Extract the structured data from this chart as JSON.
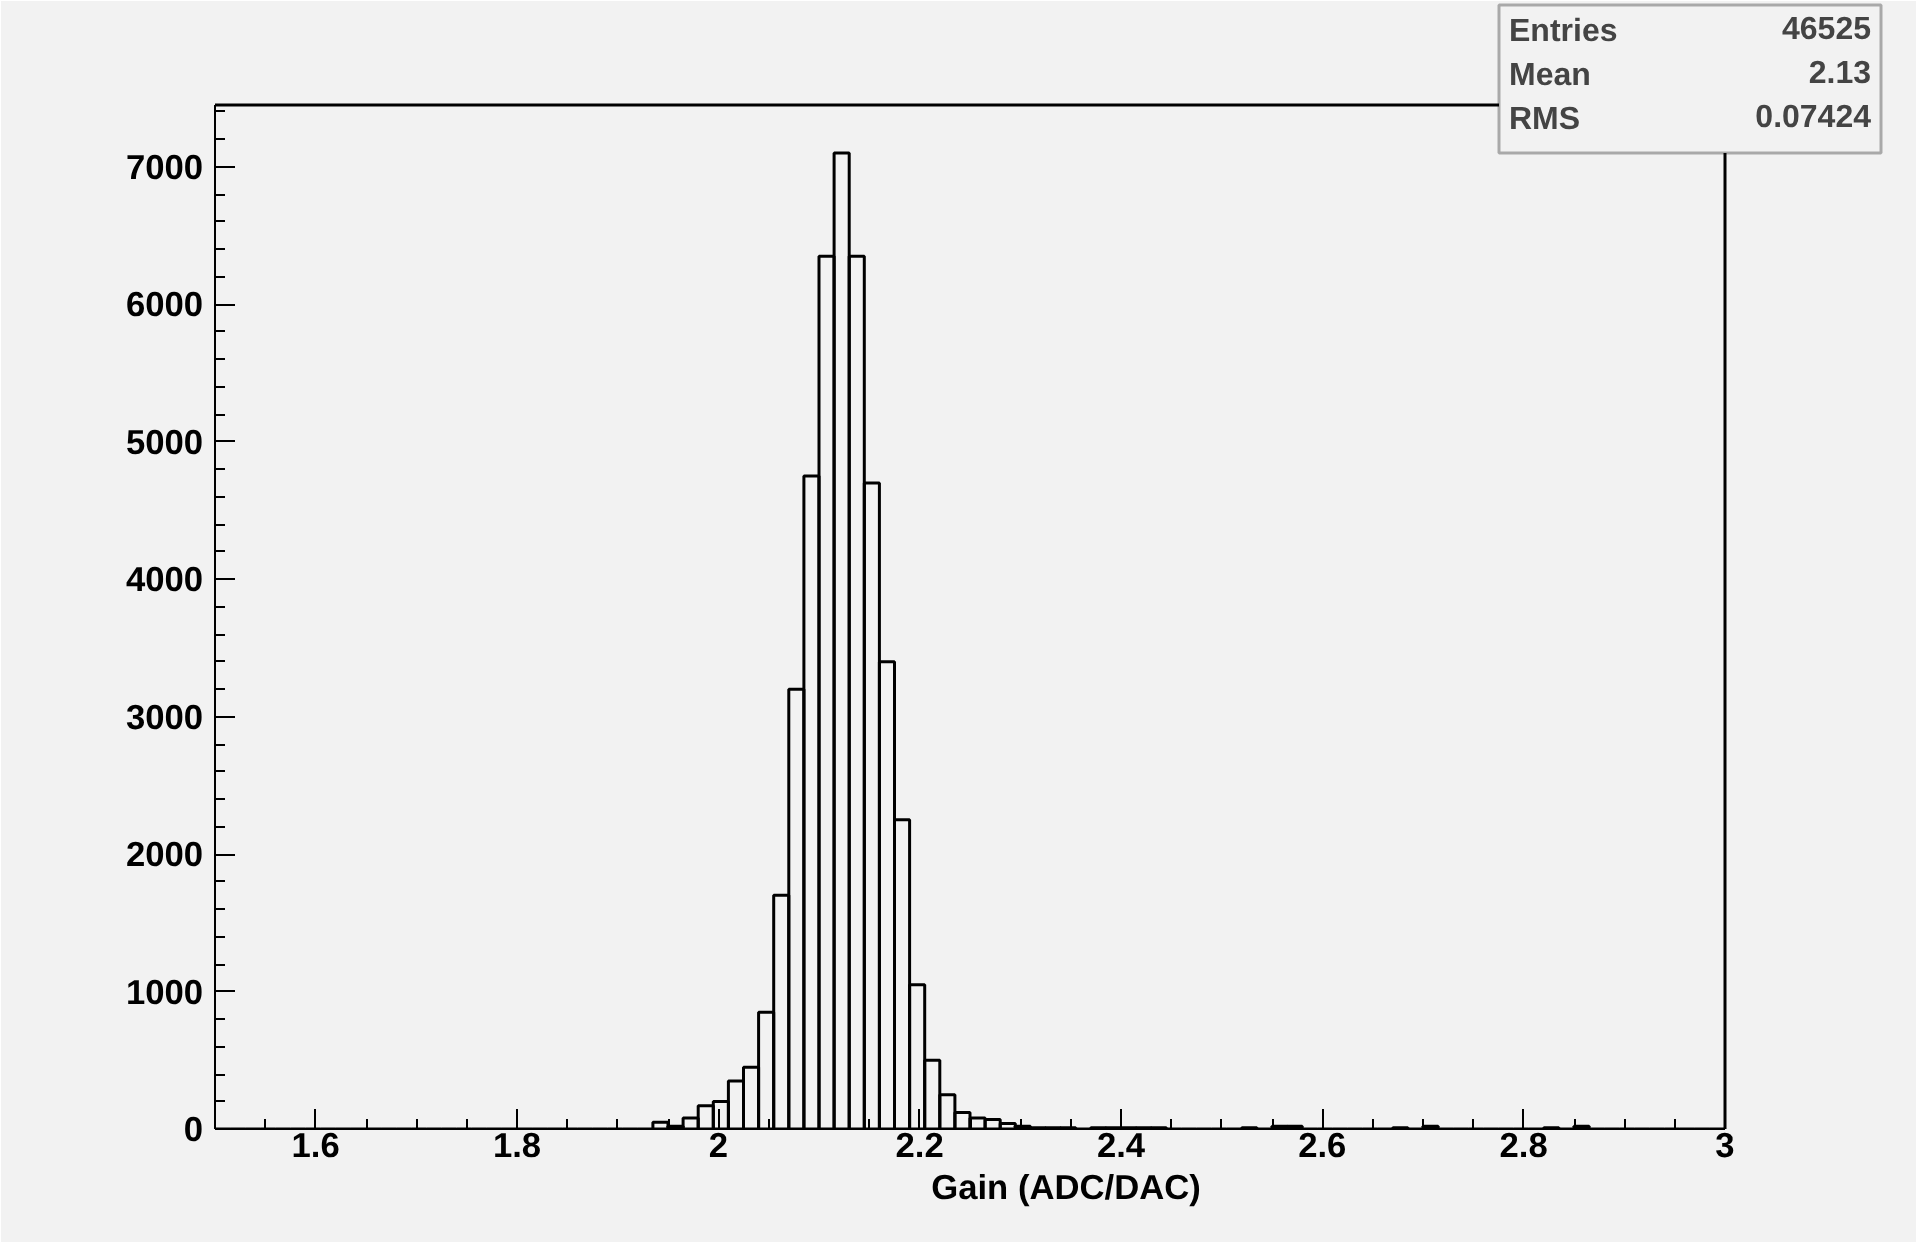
{
  "chart_data": {
    "type": "histogram",
    "xlabel": "Gain (ADC/DAC)",
    "bins": [
      1.5,
      1.515,
      1.53,
      1.545,
      1.56,
      1.575,
      1.59,
      1.605,
      1.62,
      1.635,
      1.65,
      1.665,
      1.68,
      1.695,
      1.71,
      1.725,
      1.74,
      1.755,
      1.77,
      1.785,
      1.8,
      1.815,
      1.83,
      1.845,
      1.86,
      1.875,
      1.89,
      1.905,
      1.92,
      1.935,
      1.95,
      1.965,
      1.98,
      1.995,
      2.01,
      2.025,
      2.04,
      2.055,
      2.07,
      2.085,
      2.1,
      2.115,
      2.13,
      2.145,
      2.16,
      2.175,
      2.19,
      2.205,
      2.22,
      2.235,
      2.25,
      2.265,
      2.28,
      2.295,
      2.31,
      2.325,
      2.34,
      2.355,
      2.37,
      2.385,
      2.4,
      2.415,
      2.43,
      2.445,
      2.46,
      2.475,
      2.49,
      2.505,
      2.52,
      2.535,
      2.55,
      2.565,
      2.58,
      2.595,
      2.61,
      2.625,
      2.64,
      2.655,
      2.67,
      2.685,
      2.7,
      2.715,
      2.73,
      2.745,
      2.76,
      2.775,
      2.79,
      2.805,
      2.82,
      2.835,
      2.85,
      2.865,
      2.88,
      2.895,
      2.91,
      2.925,
      2.94,
      2.955,
      2.97,
      2.985,
      3.0
    ],
    "values": [
      0,
      0,
      0,
      0,
      0,
      0,
      0,
      0,
      0,
      0,
      0,
      0,
      0,
      0,
      0,
      0,
      0,
      0,
      0,
      0,
      0,
      0,
      0,
      0,
      0,
      0,
      0,
      0,
      0,
      50,
      20,
      80,
      170,
      200,
      350,
      450,
      850,
      1700,
      3200,
      4750,
      6350,
      7100,
      6350,
      4700,
      3400,
      2250,
      1050,
      500,
      250,
      120,
      80,
      70,
      40,
      20,
      10,
      10,
      10,
      0,
      10,
      10,
      10,
      10,
      10,
      0,
      0,
      0,
      0,
      0,
      10,
      0,
      20,
      20,
      0,
      0,
      0,
      0,
      0,
      0,
      10,
      0,
      20,
      0,
      0,
      0,
      0,
      0,
      0,
      0,
      10,
      0,
      20,
      0,
      0,
      0,
      0,
      0,
      0,
      0,
      0,
      0
    ],
    "color": "#000000",
    "xlim": [
      1.5,
      3.0
    ],
    "ylim": [
      0,
      7450
    ],
    "xticks": [
      {
        "value": 1.6,
        "label": "1.6"
      },
      {
        "value": 1.8,
        "label": "1.8"
      },
      2,
      {
        "value": 2.2,
        "label": "2.2"
      },
      {
        "value": 2.4,
        "label": "2.4"
      },
      {
        "value": 2.6,
        "label": "2.6"
      },
      {
        "value": 2.8,
        "label": "2.8"
      },
      3
    ],
    "yticks": [
      0,
      1000,
      2000,
      3000,
      4000,
      5000,
      6000,
      7000
    ],
    "annotations": [
      "Entries 46525",
      "Mean 2.13",
      "RMS 0.07424"
    ],
    "grid": false
  }
}
